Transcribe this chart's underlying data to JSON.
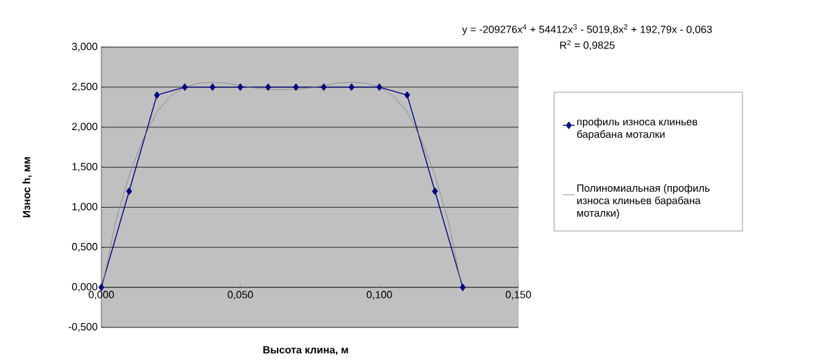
{
  "chart_data": {
    "type": "line",
    "xlabel": "Высота клина, м",
    "ylabel": "Износ h, мм",
    "annotations": [
      "y = -209276x$^{4}$ + 54412x$^{3}$ - 5019,8x$^{2}$ + 192,79x - 0,063",
      "R$^{2}$ = 0,9825"
    ],
    "series": [
      {
        "name": "профиль износа клиньев барабана моталки",
        "color": "#000080",
        "x": [
          0,
          0.01,
          0.02,
          0.03,
          0.04,
          0.05,
          0.06,
          0.07,
          0.08,
          0.09,
          0.1,
          0.11,
          0.12,
          0.13
        ],
        "values": [
          0,
          1.2,
          2.4,
          2.5,
          2.5,
          2.5,
          2.5,
          2.5,
          2.5,
          2.5,
          2.5,
          2.4,
          1.2,
          0
        ]
      },
      {
        "name": "Полиномиальная (профиль износа клиньев барабана моталки)",
        "color": "#808080",
        "marker": "none",
        "x": [
          0,
          0.005,
          0.01,
          0.015,
          0.02,
          0.025,
          0.03,
          0.035,
          0.04,
          0.045,
          0.05,
          0.055,
          0.06,
          0.065,
          0.07,
          0.075,
          0.08,
          0.085,
          0.09,
          0.095,
          0.1,
          0.105,
          0.11,
          0.115,
          0.12,
          0.125,
          0.13
        ],
        "values": [
          -0.06,
          0.8,
          1.4,
          1.85,
          2.19,
          2.39,
          2.5,
          2.55,
          2.56,
          2.55,
          2.52,
          2.49,
          2.47,
          2.47,
          2.47,
          2.49,
          2.52,
          2.55,
          2.56,
          2.55,
          2.5,
          2.39,
          2.19,
          1.85,
          1.4,
          0.8,
          -0.06
        ]
      }
    ],
    "xlim": [
      0,
      0.15
    ],
    "ylim": [
      -0.5,
      3
    ],
    "xticks": [
      {
        "value": 0,
        "label": "0,000"
      },
      {
        "value": 0.05,
        "label": "0,050"
      },
      {
        "value": 0.1,
        "label": "0,100"
      },
      {
        "value": 0.15,
        "label": "0,150"
      }
    ],
    "yticks": [
      {
        "value": -0.5,
        "label": "-0,500"
      },
      {
        "value": 0,
        "label": "0,000"
      },
      {
        "value": 0.5,
        "label": "0,500"
      },
      {
        "value": 1,
        "label": "1,000"
      },
      {
        "value": 1.5,
        "label": "1,500"
      },
      {
        "value": 2,
        "label": "2,000"
      },
      {
        "value": 2.5,
        "label": "2,500"
      },
      {
        "value": 3,
        "label": "3,000"
      }
    ],
    "grid": "y",
    "legend": "right",
    "marker": "diamond",
    "line_style": "solid"
  }
}
